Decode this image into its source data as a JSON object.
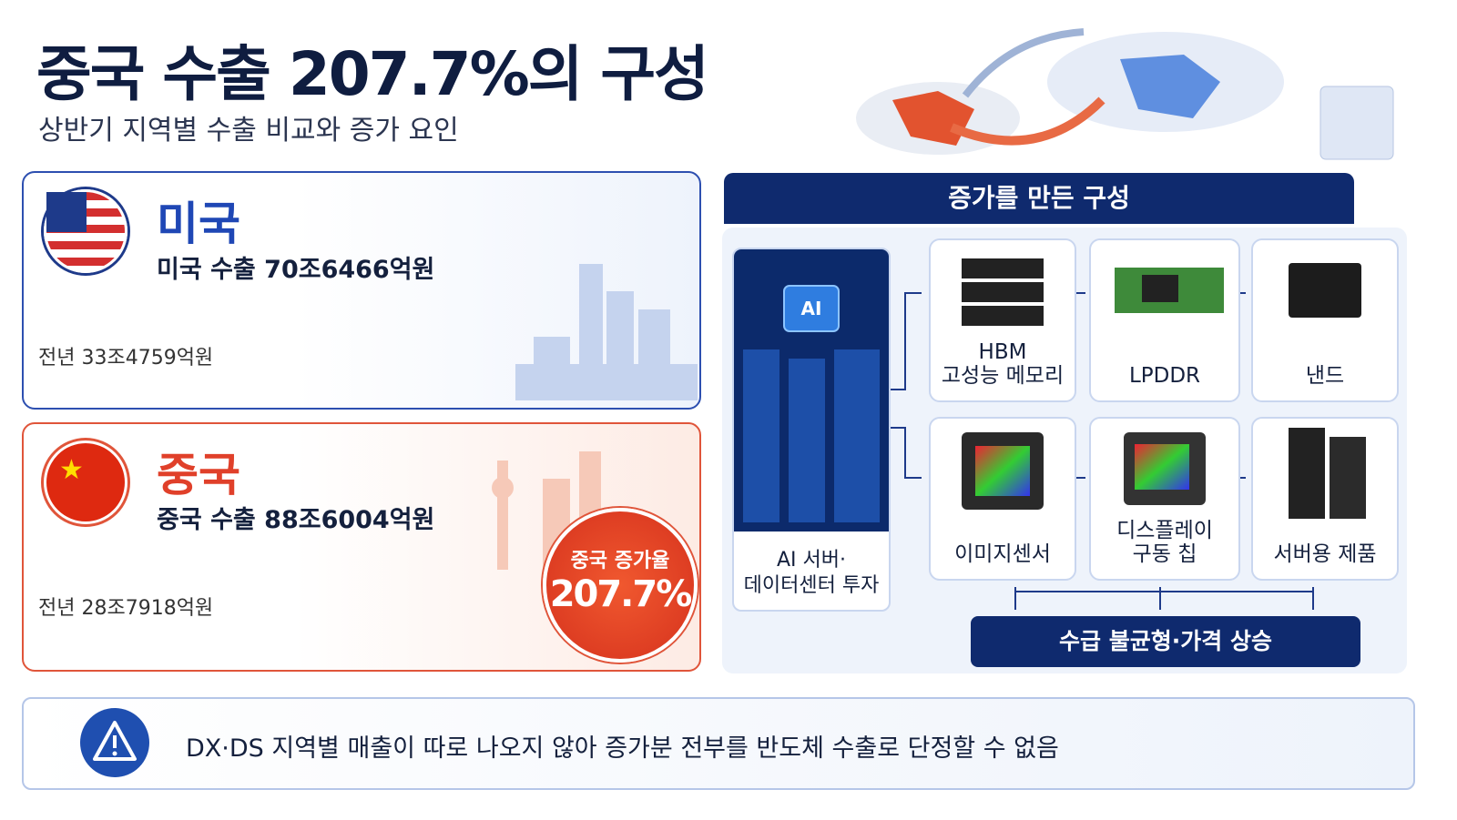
{
  "header": {
    "title": "중국 수출 207.7%의 구성",
    "subtitle": "상반기 지역별 수출 비교와 증가 요인"
  },
  "us": {
    "name": "미국",
    "current": {
      "label": "미국 수출 70조6466억원",
      "value": 706466
    },
    "previous": {
      "label": "전년 33조4759억원",
      "value": 334759
    }
  },
  "china": {
    "name": "중국",
    "current": {
      "label": "중국 수출 88조6004억원",
      "value": 886004
    },
    "previous": {
      "label": "전년 28조7918억원",
      "value": 287918
    },
    "rate_label": "중국 증가율",
    "rate": "207.7%"
  },
  "composition": {
    "title": "증가를 만든 구성",
    "source": [
      "AI 서버·",
      "데이터센터 투자"
    ],
    "items": [
      {
        "lines": [
          "HBM",
          "고성능 메모리"
        ]
      },
      {
        "lines": [
          "LPDDR"
        ]
      },
      {
        "lines": [
          "낸드"
        ]
      },
      {
        "lines": [
          "이미지센서"
        ]
      },
      {
        "lines": [
          "디스플레이",
          "구동 칩"
        ]
      },
      {
        "lines": [
          "서버용 제품"
        ]
      }
    ],
    "driver": "수급 불균형·가격 상승"
  },
  "notice": "DX·DS 지역별 매출이 따로 나오지 않아 증가분 전부를 반도체 수출로 단정할 수 없음"
}
